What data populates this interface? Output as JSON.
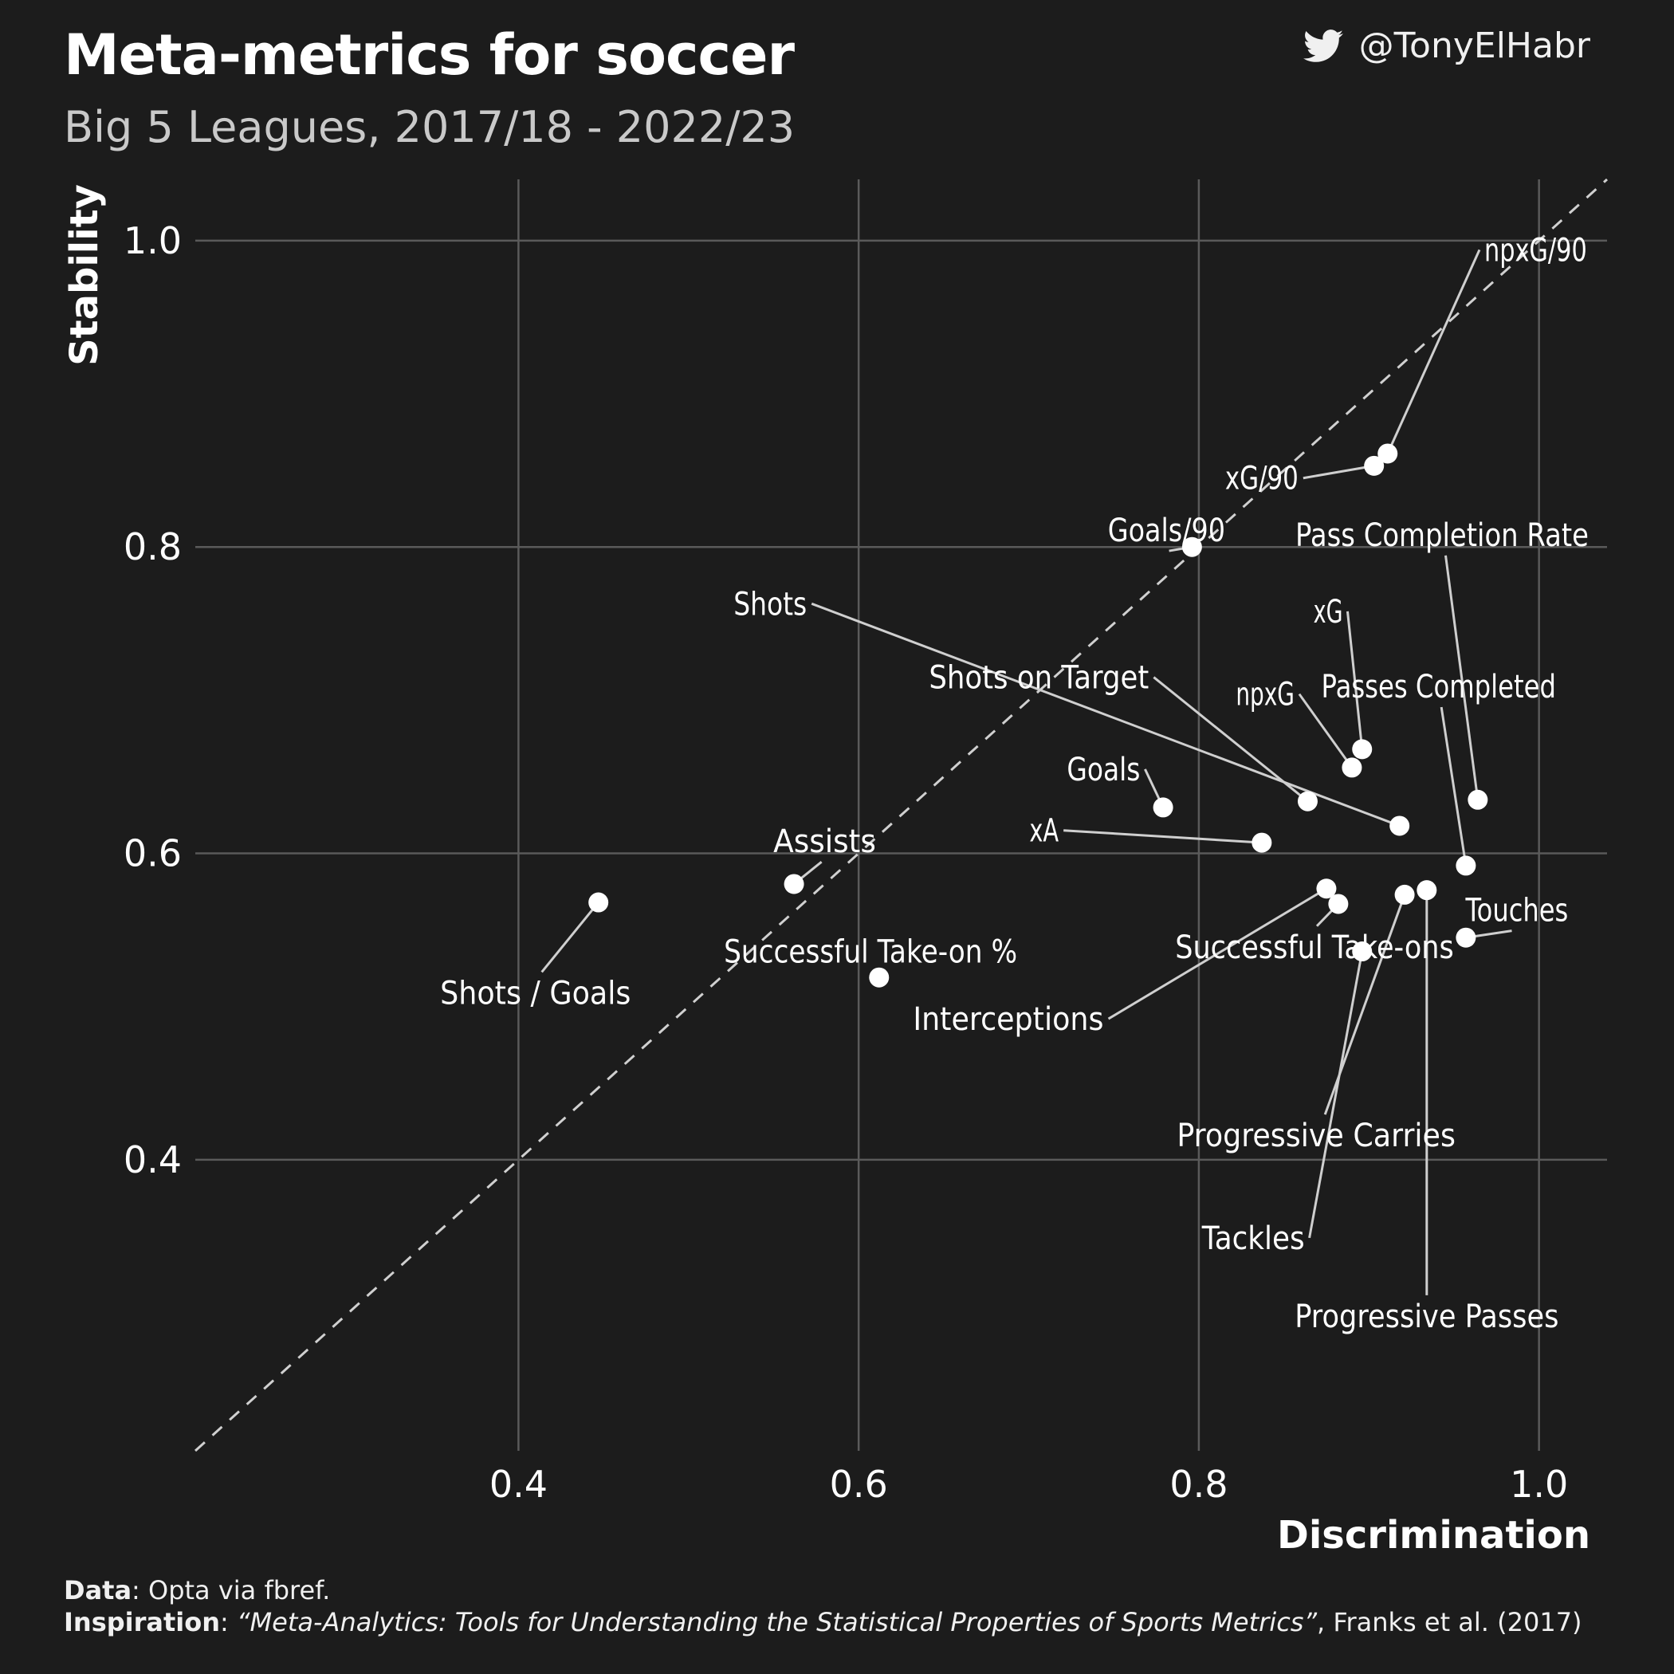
{
  "header": {
    "title": "Meta-metrics for soccer",
    "subtitle": "Big 5 Leagues, 2017/18 - 2022/23",
    "handle": "@TonyElHabr",
    "handle_icon": "twitter-bird-icon"
  },
  "caption": {
    "data_label": "Data",
    "data_text": ": Opta via fbref.",
    "inspiration_label": "Inspiration",
    "inspiration_sep": ": ",
    "inspiration_title": "“Meta-Analytics: Tools for Understanding the Statistical Properties of Sports Metrics”",
    "inspiration_authors": ", Franks et al. (2017)"
  },
  "chart_data": {
    "type": "scatter",
    "xlabel": "Discrimination",
    "ylabel": "Stability",
    "xlim": [
      0.21,
      1.04
    ],
    "ylim": [
      0.21,
      1.04
    ],
    "xticks": [
      {
        "value": 0.4,
        "label": "0.4"
      },
      {
        "value": 0.6,
        "label": "0.6"
      },
      {
        "value": 0.8,
        "label": "0.8"
      },
      {
        "value": 1.0,
        "label": "1.0"
      }
    ],
    "yticks": [
      {
        "value": 0.4,
        "label": "0.4"
      },
      {
        "value": 0.6,
        "label": "0.6"
      },
      {
        "value": 0.8,
        "label": "0.8"
      },
      {
        "value": 1.0,
        "label": "1.0"
      }
    ],
    "reference_line": "y = x (dashed)",
    "grid": true,
    "colors": {
      "background": "#1c1c1c",
      "grid": "#5a5a5a",
      "point": "#ffffff",
      "leader": "#cfcfcf",
      "text": "#ffffff"
    },
    "points": [
      {
        "label": "npxG/90",
        "x": 0.911,
        "y": 0.861,
        "lx": 0.998,
        "ly": 0.994
      },
      {
        "label": "xG/90",
        "x": 0.903,
        "y": 0.853,
        "lx": 0.837,
        "ly": 0.845
      },
      {
        "label": "Goals/90",
        "x": 0.796,
        "y": 0.8,
        "lx": 0.781,
        "ly": 0.811
      },
      {
        "label": "Pass Completion Rate",
        "x": 0.964,
        "y": 0.635,
        "lx": 0.943,
        "ly": 0.808
      },
      {
        "label": "Shots",
        "x": 0.918,
        "y": 0.618,
        "lx": 0.548,
        "ly": 0.763
      },
      {
        "label": "xG",
        "x": 0.896,
        "y": 0.668,
        "lx": 0.876,
        "ly": 0.758
      },
      {
        "label": "Shots on Target",
        "x": 0.864,
        "y": 0.634,
        "lx": 0.706,
        "ly": 0.715
      },
      {
        "label": "Passes Completed",
        "x": 0.957,
        "y": 0.592,
        "lx": 0.941,
        "ly": 0.709
      },
      {
        "label": "npxG",
        "x": 0.89,
        "y": 0.656,
        "lx": 0.839,
        "ly": 0.704
      },
      {
        "label": "Goals",
        "x": 0.779,
        "y": 0.63,
        "lx": 0.744,
        "ly": 0.655
      },
      {
        "label": "xA",
        "x": 0.837,
        "y": 0.607,
        "lx": 0.709,
        "ly": 0.615
      },
      {
        "label": "Assists",
        "x": 0.562,
        "y": 0.58,
        "lx": 0.58,
        "ly": 0.608
      },
      {
        "label": "Touches",
        "x": 0.957,
        "y": 0.545,
        "lx": 0.987,
        "ly": 0.563
      },
      {
        "label": "Successful Take-ons",
        "x": 0.882,
        "y": 0.567,
        "lx": 0.868,
        "ly": 0.539
      },
      {
        "label": "Successful Take-on %",
        "x": 0.612,
        "y": 0.519,
        "lx": 0.607,
        "ly": 0.536
      },
      {
        "label": "Shots / Goals",
        "x": 0.447,
        "y": 0.568,
        "lx": 0.41,
        "ly": 0.509
      },
      {
        "label": "Interceptions",
        "x": 0.875,
        "y": 0.577,
        "lx": 0.688,
        "ly": 0.492
      },
      {
        "label": "Progressive Carries",
        "x": 0.921,
        "y": 0.573,
        "lx": 0.869,
        "ly": 0.416
      },
      {
        "label": "Tackles",
        "x": 0.896,
        "y": 0.536,
        "lx": 0.832,
        "ly": 0.349
      },
      {
        "label": "Progressive Passes",
        "x": 0.934,
        "y": 0.576,
        "lx": 0.934,
        "ly": 0.298
      }
    ]
  }
}
